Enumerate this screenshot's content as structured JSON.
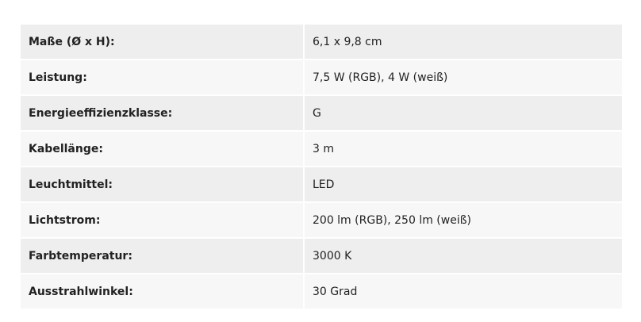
{
  "specs": [
    {
      "label": "Maße (Ø x H):",
      "value": "6,1 x 9,8 cm"
    },
    {
      "label": "Leistung:",
      "value": "7,5 W (RGB), 4 W (weiß)"
    },
    {
      "label": "Energieeffizienzklasse:",
      "value": "G"
    },
    {
      "label": "Kabellänge:",
      "value": "3 m"
    },
    {
      "label": "Leuchtmittel:",
      "value": "LED"
    },
    {
      "label": "Lichtstrom:",
      "value": "200 lm (RGB), 250 lm (weiß)"
    },
    {
      "label": "Farbtemperatur:",
      "value": "3000 K"
    },
    {
      "label": "Ausstrahlwinkel:",
      "value": "30 Grad"
    }
  ]
}
